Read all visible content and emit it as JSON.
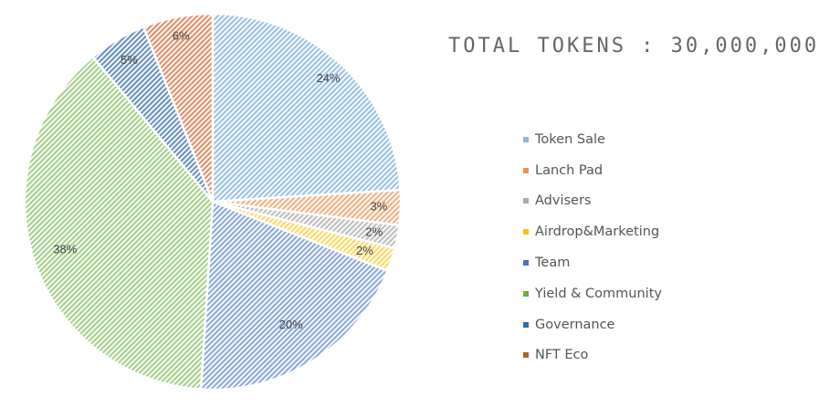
{
  "chart_data": {
    "type": "pie",
    "title": "TOTAL TOKENS : 30,000,000",
    "legend_position": "right",
    "pattern": "diagonal-hatch",
    "categories": [
      "Token Sale",
      "Lanch Pad",
      "Advisers",
      "Airdrop&Marketing",
      "Team",
      "Yield & Community",
      "Governance",
      "NFT Eco"
    ],
    "values": [
      24,
      3,
      2,
      2,
      20,
      38,
      5,
      6
    ],
    "labels": [
      "24%",
      "3%",
      "2%",
      "2%",
      "20%",
      "38%",
      "5%",
      "6%"
    ],
    "colors": [
      "#9dc3e6",
      "#f4b183",
      "#bfbfbf",
      "#ffd966",
      "#8faadc",
      "#a9d18e",
      "#6d93c0",
      "#e2916a"
    ],
    "legend_colors": [
      "#8fb7e0",
      "#f08c55",
      "#aaaaaa",
      "#ffc000",
      "#4472c4",
      "#70ad47",
      "#2e6ca4",
      "#b85c25"
    ]
  }
}
